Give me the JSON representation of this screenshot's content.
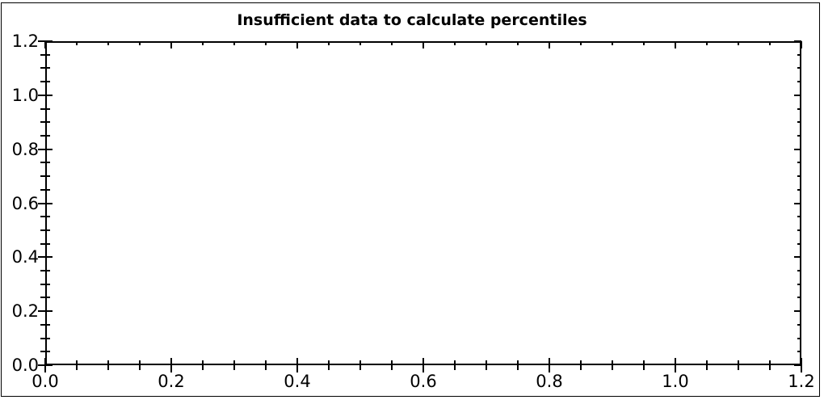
{
  "window": {
    "background": "#ffffff",
    "border_color": "#000000"
  },
  "title": {
    "text": "Insufficient data to calculate percentiles",
    "color": "#000000"
  },
  "axes": {
    "x": {
      "tick_labels": [
        "0.0",
        "0.2",
        "0.4",
        "0.6",
        "0.8",
        "1.0",
        "1.2"
      ],
      "min": 0.0,
      "max": 1.2,
      "minor_step": 0.05
    },
    "y": {
      "tick_labels": [
        "0.0",
        "0.2",
        "0.4",
        "0.6",
        "0.8",
        "1.0",
        "1.2"
      ],
      "min": 0.0,
      "max": 1.2,
      "minor_step": 0.05
    }
  },
  "chart_data": {
    "type": "scatter",
    "title": "Insufficient data to calculate percentiles",
    "xlabel": "",
    "ylabel": "",
    "xlim": [
      0.0,
      1.2
    ],
    "ylim": [
      0.0,
      1.2
    ],
    "x_major_ticks": [
      0.0,
      0.2,
      0.4,
      0.6,
      0.8,
      1.0,
      1.2
    ],
    "y_major_ticks": [
      0.0,
      0.2,
      0.4,
      0.6,
      0.8,
      1.0,
      1.2
    ],
    "minor_tick_step": 0.05,
    "grid": false,
    "legend": null,
    "series": []
  }
}
